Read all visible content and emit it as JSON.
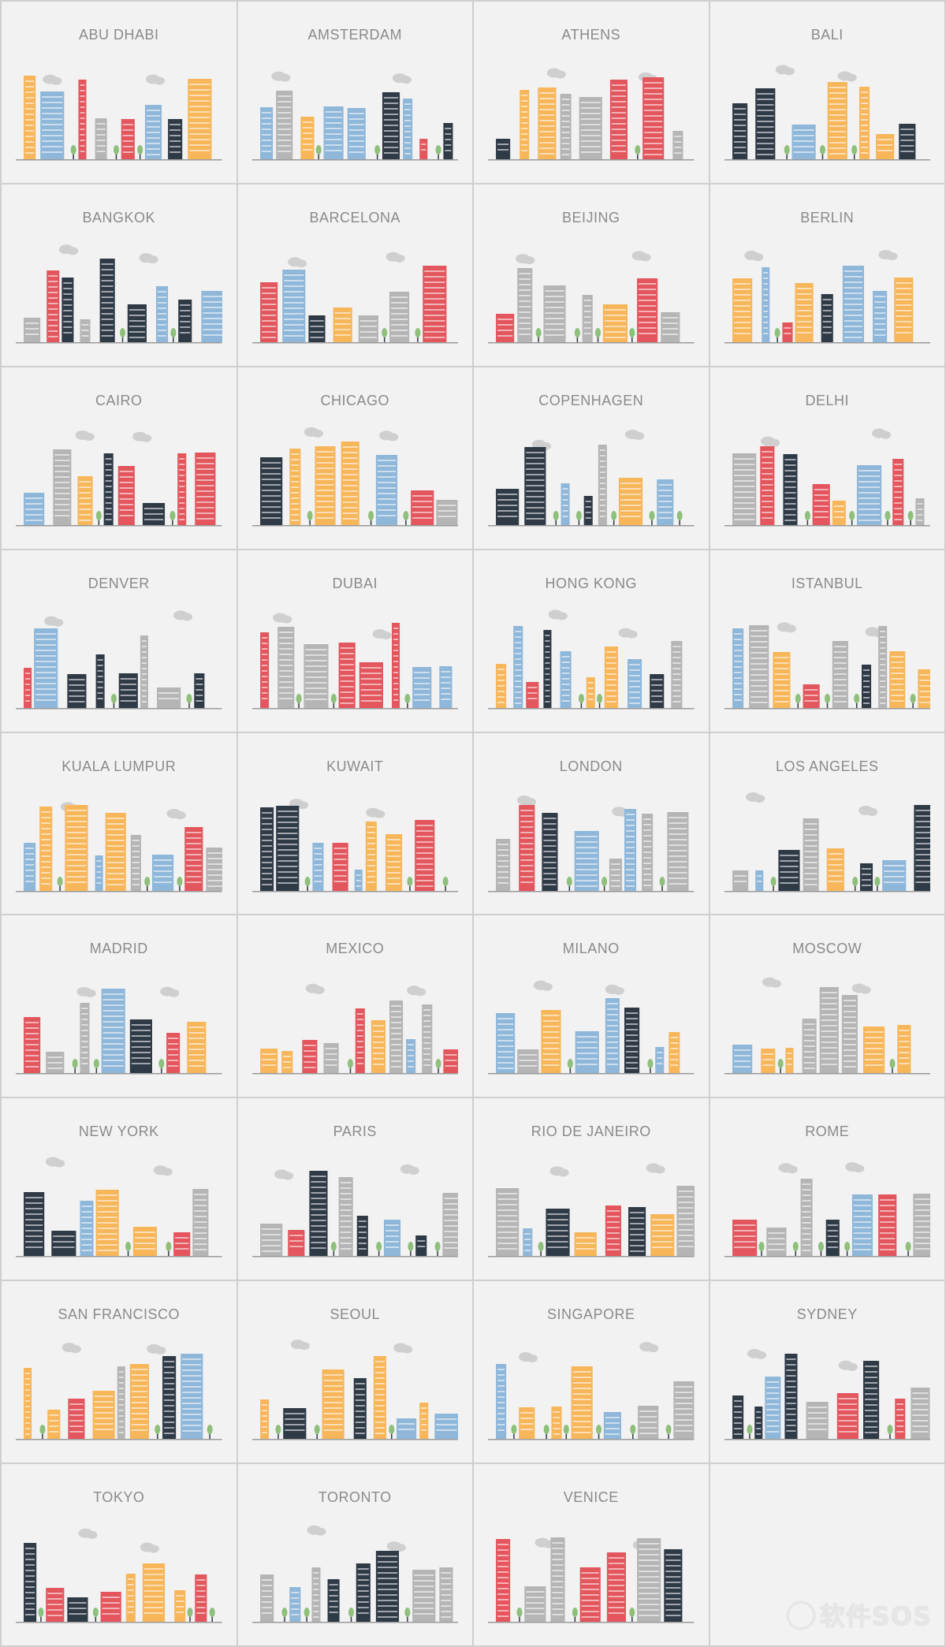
{
  "colors": {
    "navy": "#2f3a47",
    "blue": "#8fb7d9",
    "orange": "#f7b65a",
    "red": "#e3565d",
    "gray": "#b5b5b5",
    "green": "#8ec07c",
    "cloud": "#cfcfcf"
  },
  "cities": [
    {
      "name": "ABU DHABI"
    },
    {
      "name": "AMSTERDAM"
    },
    {
      "name": "ATHENS"
    },
    {
      "name": "BALI"
    },
    {
      "name": "BANGKOK"
    },
    {
      "name": "BARCELONA"
    },
    {
      "name": "BEIJING"
    },
    {
      "name": "BERLIN"
    },
    {
      "name": "CAIRO"
    },
    {
      "name": "CHICAGO"
    },
    {
      "name": "COPENHAGEN"
    },
    {
      "name": "DELHI"
    },
    {
      "name": "DENVER"
    },
    {
      "name": "DUBAI"
    },
    {
      "name": "HONG KONG"
    },
    {
      "name": "ISTANBUL"
    },
    {
      "name": "KUALA LUMPUR"
    },
    {
      "name": "KUWAIT"
    },
    {
      "name": "LONDON"
    },
    {
      "name": "LOS ANGELES"
    },
    {
      "name": "MADRID"
    },
    {
      "name": "MEXICO"
    },
    {
      "name": "MILANO"
    },
    {
      "name": "MOSCOW"
    },
    {
      "name": "NEW YORK"
    },
    {
      "name": "PARIS"
    },
    {
      "name": "RIO DE JANEIRO"
    },
    {
      "name": "ROME"
    },
    {
      "name": "SAN FRANCISCO"
    },
    {
      "name": "SEOUL"
    },
    {
      "name": "SINGAPORE"
    },
    {
      "name": "SYDNEY"
    },
    {
      "name": "TOKYO"
    },
    {
      "name": "TORONTO"
    },
    {
      "name": "VENICE"
    }
  ],
  "watermark": "软件SOS"
}
